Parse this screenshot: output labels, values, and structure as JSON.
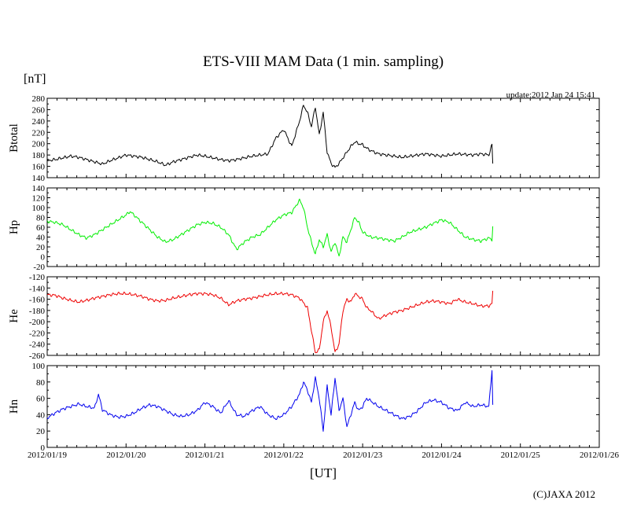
{
  "chart_data": {
    "type": "line",
    "title": "ETS-VIII MAM Data (1 min. sampling)",
    "unit": "[nT]",
    "update": "update:2012 Jan 24 15:41",
    "xlabel": "[UT]",
    "credit": "(C)JAXA 2012",
    "x_ticks": [
      "2012/01/19",
      "2012/01/20",
      "2012/01/21",
      "2012/01/22",
      "2012/01/23",
      "2012/01/24",
      "2012/01/25",
      "2012/01/26"
    ],
    "xlim": [
      0,
      7
    ],
    "panels": [
      {
        "name": "Btotal",
        "label": "Btotal",
        "color": "#000000",
        "ylim": [
          140,
          280
        ],
        "yticks": [
          140,
          160,
          180,
          200,
          220,
          240,
          260,
          280
        ],
        "yticklabels": [
          "140",
          "160",
          "180",
          "200",
          "220",
          "240",
          "260",
          "280"
        ],
        "x": [
          0,
          0.1,
          0.2,
          0.3,
          0.4,
          0.5,
          0.6,
          0.7,
          0.8,
          0.9,
          1.0,
          1.1,
          1.2,
          1.3,
          1.4,
          1.5,
          1.6,
          1.7,
          1.8,
          1.9,
          2.0,
          2.1,
          2.2,
          2.3,
          2.4,
          2.5,
          2.6,
          2.7,
          2.8,
          2.9,
          3.0,
          3.1,
          3.2,
          3.25,
          3.3,
          3.35,
          3.4,
          3.45,
          3.5,
          3.55,
          3.6,
          3.65,
          3.7,
          3.75,
          3.8,
          3.85,
          3.9,
          3.95,
          4.0,
          4.05,
          4.1,
          4.2,
          4.3,
          4.4,
          4.5,
          4.6,
          4.7,
          4.8,
          4.9,
          5.0,
          5.1,
          5.2,
          5.3,
          5.4,
          5.5,
          5.6,
          5.64,
          5.65
        ],
        "values": [
          170,
          172,
          175,
          178,
          176,
          172,
          168,
          164,
          170,
          175,
          180,
          178,
          176,
          172,
          168,
          162,
          168,
          172,
          176,
          180,
          178,
          175,
          172,
          170,
          172,
          175,
          178,
          180,
          182,
          210,
          225,
          195,
          240,
          268,
          255,
          230,
          265,
          215,
          255,
          185,
          165,
          158,
          165,
          175,
          185,
          195,
          203,
          200,
          198,
          192,
          188,
          182,
          180,
          178,
          176,
          178,
          180,
          182,
          180,
          178,
          180,
          182,
          181,
          180,
          182,
          180,
          198,
          165
        ]
      },
      {
        "name": "Hp",
        "label": "Hp",
        "color": "#00ee00",
        "ylim": [
          -20,
          140
        ],
        "yticks": [
          -20,
          0,
          20,
          40,
          60,
          80,
          100,
          120,
          140
        ],
        "yticklabels": [
          "-20",
          "0",
          "20",
          "40",
          "60",
          "80",
          "100",
          "120",
          "140"
        ],
        "x": [
          0,
          0.1,
          0.2,
          0.3,
          0.4,
          0.5,
          0.6,
          0.7,
          0.8,
          0.9,
          1.0,
          1.05,
          1.1,
          1.2,
          1.3,
          1.4,
          1.5,
          1.6,
          1.7,
          1.8,
          1.9,
          2.0,
          2.1,
          2.2,
          2.3,
          2.4,
          2.5,
          2.6,
          2.7,
          2.8,
          2.9,
          3.0,
          3.1,
          3.2,
          3.25,
          3.3,
          3.35,
          3.4,
          3.45,
          3.5,
          3.55,
          3.6,
          3.65,
          3.7,
          3.75,
          3.8,
          3.85,
          3.9,
          3.95,
          4.0,
          4.05,
          4.1,
          4.2,
          4.3,
          4.4,
          4.5,
          4.6,
          4.7,
          4.8,
          4.9,
          5.0,
          5.1,
          5.2,
          5.3,
          5.4,
          5.5,
          5.6,
          5.64,
          5.65
        ],
        "values": [
          72,
          70,
          65,
          55,
          45,
          38,
          45,
          55,
          65,
          75,
          85,
          92,
          85,
          70,
          55,
          40,
          30,
          35,
          45,
          55,
          65,
          70,
          68,
          60,
          45,
          15,
          30,
          40,
          45,
          60,
          75,
          85,
          90,
          115,
          100,
          60,
          30,
          5,
          35,
          20,
          45,
          10,
          30,
          0,
          40,
          30,
          55,
          80,
          70,
          50,
          45,
          40,
          38,
          35,
          32,
          40,
          50,
          55,
          60,
          68,
          75,
          70,
          55,
          40,
          35,
          32,
          38,
          35,
          62
        ]
      },
      {
        "name": "He",
        "label": "He",
        "color": "#ee0000",
        "ylim": [
          -260,
          -120
        ],
        "yticks": [
          -260,
          -240,
          -220,
          -200,
          -180,
          -160,
          -140,
          -120
        ],
        "yticklabels": [
          "-260",
          "-240",
          "-220",
          "-200",
          "-180",
          "-160",
          "-140",
          "-120"
        ],
        "x": [
          0,
          0.1,
          0.2,
          0.3,
          0.4,
          0.5,
          0.6,
          0.7,
          0.8,
          0.9,
          1.0,
          1.1,
          1.2,
          1.3,
          1.4,
          1.5,
          1.6,
          1.7,
          1.8,
          1.9,
          2.0,
          2.1,
          2.2,
          2.3,
          2.4,
          2.5,
          2.6,
          2.7,
          2.8,
          2.9,
          3.0,
          3.1,
          3.2,
          3.3,
          3.35,
          3.4,
          3.45,
          3.5,
          3.55,
          3.6,
          3.65,
          3.7,
          3.75,
          3.8,
          3.85,
          3.9,
          3.95,
          4.0,
          4.05,
          4.1,
          4.2,
          4.3,
          4.4,
          4.5,
          4.6,
          4.7,
          4.8,
          4.9,
          5.0,
          5.1,
          5.2,
          5.3,
          5.4,
          5.5,
          5.6,
          5.64,
          5.65
        ],
        "values": [
          -152,
          -153,
          -158,
          -162,
          -165,
          -162,
          -158,
          -155,
          -152,
          -150,
          -150,
          -152,
          -155,
          -160,
          -163,
          -162,
          -158,
          -155,
          -152,
          -150,
          -150,
          -152,
          -158,
          -170,
          -163,
          -160,
          -158,
          -155,
          -152,
          -150,
          -150,
          -152,
          -158,
          -175,
          -215,
          -255,
          -250,
          -200,
          -180,
          -210,
          -255,
          -240,
          -180,
          -160,
          -165,
          -150,
          -155,
          -160,
          -175,
          -180,
          -195,
          -188,
          -183,
          -180,
          -175,
          -170,
          -165,
          -163,
          -165,
          -168,
          -160,
          -165,
          -168,
          -172,
          -172,
          -168,
          -145
        ]
      },
      {
        "name": "Hn",
        "label": "Hn",
        "color": "#0000ee",
        "ylim": [
          0,
          100
        ],
        "yticks": [
          0,
          20,
          40,
          60,
          80,
          100
        ],
        "yticklabels": [
          "0",
          "20",
          "40",
          "60",
          "80",
          "100"
        ],
        "x": [
          0,
          0.1,
          0.2,
          0.3,
          0.4,
          0.5,
          0.6,
          0.65,
          0.7,
          0.8,
          0.9,
          1.0,
          1.1,
          1.2,
          1.3,
          1.4,
          1.5,
          1.6,
          1.7,
          1.8,
          1.9,
          2.0,
          2.1,
          2.2,
          2.3,
          2.4,
          2.5,
          2.6,
          2.7,
          2.8,
          2.9,
          3.0,
          3.1,
          3.2,
          3.25,
          3.3,
          3.35,
          3.4,
          3.45,
          3.5,
          3.55,
          3.6,
          3.65,
          3.7,
          3.75,
          3.8,
          3.85,
          3.9,
          3.95,
          4.0,
          4.05,
          4.1,
          4.2,
          4.3,
          4.4,
          4.5,
          4.6,
          4.7,
          4.8,
          4.9,
          5.0,
          5.1,
          5.2,
          5.3,
          5.4,
          5.5,
          5.6,
          5.64,
          5.65
        ],
        "values": [
          36,
          42,
          47,
          50,
          53,
          50,
          48,
          65,
          46,
          40,
          37,
          38,
          42,
          48,
          52,
          50,
          45,
          40,
          38,
          40,
          45,
          55,
          50,
          42,
          57,
          40,
          38,
          45,
          50,
          40,
          35,
          40,
          50,
          65,
          80,
          70,
          55,
          85,
          60,
          20,
          75,
          40,
          85,
          45,
          60,
          25,
          40,
          55,
          45,
          50,
          60,
          57,
          50,
          45,
          40,
          35,
          38,
          45,
          55,
          58,
          55,
          48,
          45,
          55,
          50,
          52,
          50,
          95,
          52
        ]
      }
    ]
  }
}
